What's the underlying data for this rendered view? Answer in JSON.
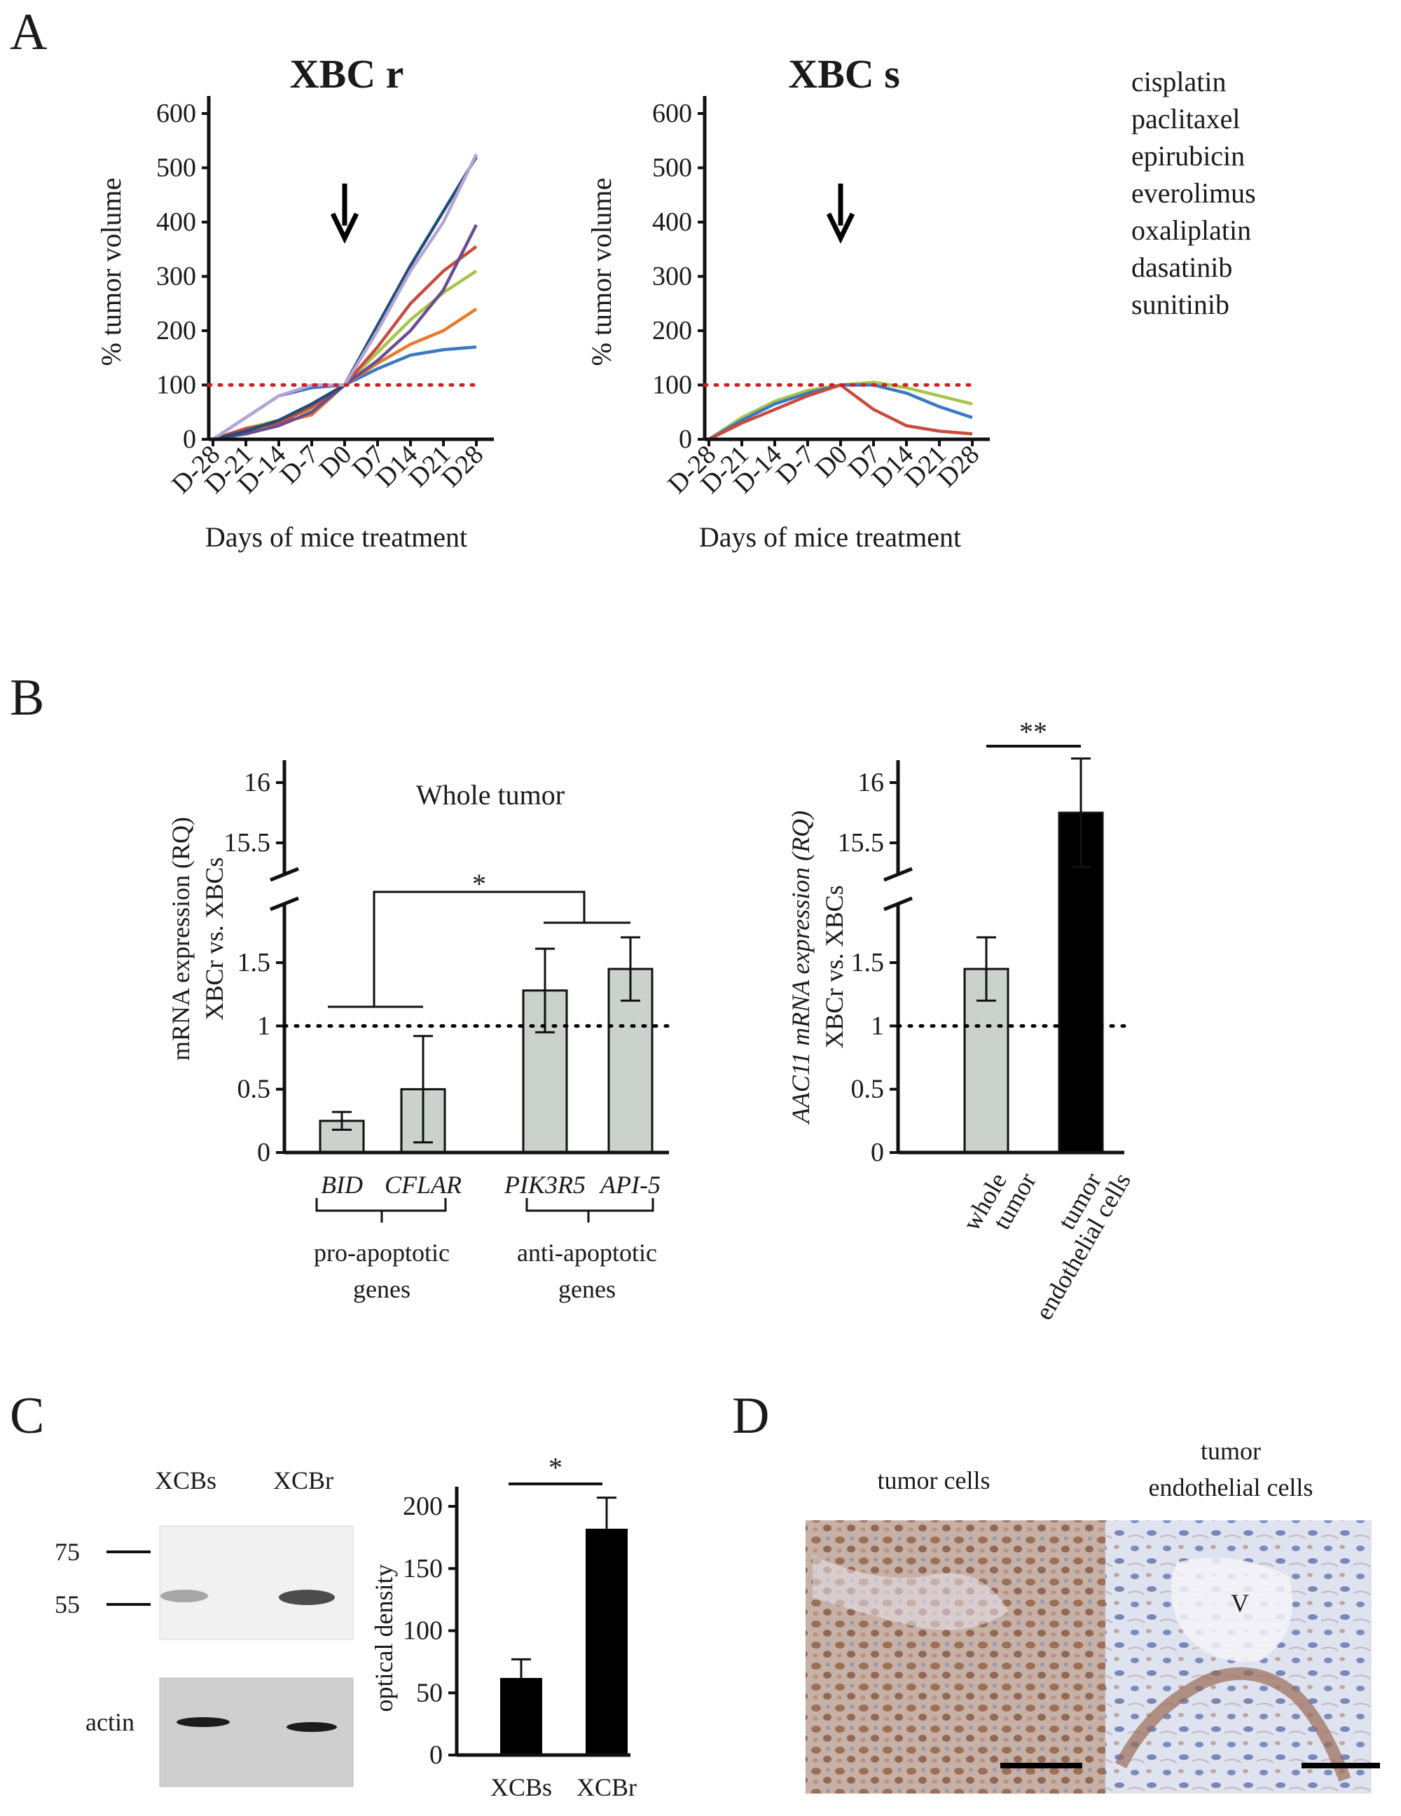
{
  "panel_labels": [
    "A",
    "B",
    "C",
    "D"
  ],
  "chart_data": [
    {
      "id": "A1",
      "type": "line",
      "title": "XBC r",
      "xlabel": "Days of mice treatment",
      "ylabel": "% tumor volume",
      "x": [
        "D-28",
        "D-21",
        "D-14",
        "D-7",
        "D0",
        "D7",
        "D14",
        "D21",
        "D28"
      ],
      "ylim": [
        0,
        600
      ],
      "yticks": [
        "0",
        "100",
        "200",
        "300",
        "400",
        "500",
        "600"
      ],
      "reference_line": 100,
      "treatment_start": "D0",
      "series": [
        {
          "color": "#3a78c2",
          "values": [
            0,
            40,
            80,
            95,
            100,
            130,
            155,
            165,
            170
          ]
        },
        {
          "color": "#e87a2a",
          "values": [
            0,
            15,
            30,
            45,
            100,
            140,
            175,
            200,
            240
          ]
        },
        {
          "color": "#a7c44a",
          "values": [
            0,
            20,
            35,
            55,
            100,
            160,
            220,
            270,
            310
          ]
        },
        {
          "color": "#c94a3f",
          "values": [
            0,
            20,
            30,
            60,
            100,
            170,
            250,
            310,
            355
          ]
        },
        {
          "color": "#6a4c93",
          "values": [
            0,
            10,
            25,
            50,
            100,
            145,
            200,
            275,
            395
          ]
        },
        {
          "color": "#1f4e79",
          "values": [
            0,
            15,
            35,
            65,
            100,
            210,
            320,
            420,
            520
          ]
        },
        {
          "color": "#b6a4d4",
          "values": [
            0,
            40,
            80,
            100,
            100,
            200,
            310,
            400,
            525
          ]
        }
      ]
    },
    {
      "id": "A2",
      "type": "line",
      "title": "XBC s",
      "xlabel": "Days of mice treatment",
      "ylabel": "% tumor volume",
      "x": [
        "D-28",
        "D-21",
        "D-14",
        "D-7",
        "D0",
        "D7",
        "D14",
        "D21",
        "D28"
      ],
      "ylim": [
        0,
        600
      ],
      "yticks": [
        "0",
        "100",
        "200",
        "300",
        "400",
        "500",
        "600"
      ],
      "reference_line": 100,
      "treatment_start": "D0",
      "series": [
        {
          "color": "#a7c44a",
          "values": [
            0,
            40,
            70,
            90,
            100,
            105,
            95,
            80,
            65
          ]
        },
        {
          "color": "#3a78c2",
          "values": [
            0,
            35,
            65,
            85,
            100,
            100,
            85,
            60,
            40
          ]
        },
        {
          "color": "#c94a3f",
          "values": [
            0,
            30,
            55,
            80,
            100,
            55,
            25,
            15,
            10
          ]
        }
      ]
    },
    {
      "id": "B1",
      "type": "bar",
      "title": "Whole tumor",
      "ylabel_lines": [
        "mRNA expression (RQ)",
        "XBCr vs. XBCs"
      ],
      "yticks_lower": [
        "0",
        "0.5",
        "1",
        "1.5"
      ],
      "yticks_upper": [
        "15.5",
        "16"
      ],
      "categories": [
        "BID",
        "CFLAR",
        "PIK3R5",
        "API-5"
      ],
      "values": [
        0.25,
        0.5,
        1.28,
        1.45
      ],
      "errors": [
        0.07,
        0.42,
        0.33,
        0.25
      ],
      "groups": [
        {
          "label_lines": [
            "pro-apoptotic",
            "genes"
          ],
          "members": [
            "BID",
            "CFLAR"
          ]
        },
        {
          "label_lines": [
            "anti-apoptotic",
            "genes"
          ],
          "members": [
            "PIK3R5",
            "API-5"
          ]
        }
      ],
      "significance": "*",
      "reference_line": 1,
      "bar_color": "#cbd2cc"
    },
    {
      "id": "B2",
      "type": "bar",
      "ylabel_lines": [
        "AAC11 mRNA expression (RQ)",
        "XBCr vs. XBCs"
      ],
      "yticks_lower": [
        "0",
        "0.5",
        "1",
        "1.5"
      ],
      "yticks_upper": [
        "15.5",
        "16"
      ],
      "categories": [
        "whole tumor",
        "tumor endothelial cells"
      ],
      "values": [
        1.45,
        15.75
      ],
      "errors": [
        0.25,
        0.45
      ],
      "significance": "**",
      "reference_line": 1,
      "bar_colors": [
        "#cbd2cc",
        "#000000"
      ]
    },
    {
      "id": "C2",
      "type": "bar",
      "ylabel": "optical density",
      "categories": [
        "XCBs",
        "XCBr"
      ],
      "values": [
        62,
        182
      ],
      "errors": [
        15,
        25
      ],
      "ylim": [
        0,
        200
      ],
      "yticks": [
        "0",
        "50",
        "100",
        "150",
        "200"
      ],
      "significance": "*",
      "bar_color": "#000000"
    }
  ],
  "legend": [
    "cisplatin",
    "paclitaxel",
    "epirubicin",
    "everolimus",
    "oxaliplatin",
    "dasatinib",
    "sunitinib"
  ],
  "blot": {
    "lanes": [
      "XCBs",
      "XCBr"
    ],
    "markers": [
      "75",
      "55"
    ],
    "loading_label": "actin"
  },
  "histology": {
    "left_title": "tumor cells",
    "right_title_lines": [
      "tumor",
      "endothelial cells"
    ],
    "vessel_label": "V"
  }
}
